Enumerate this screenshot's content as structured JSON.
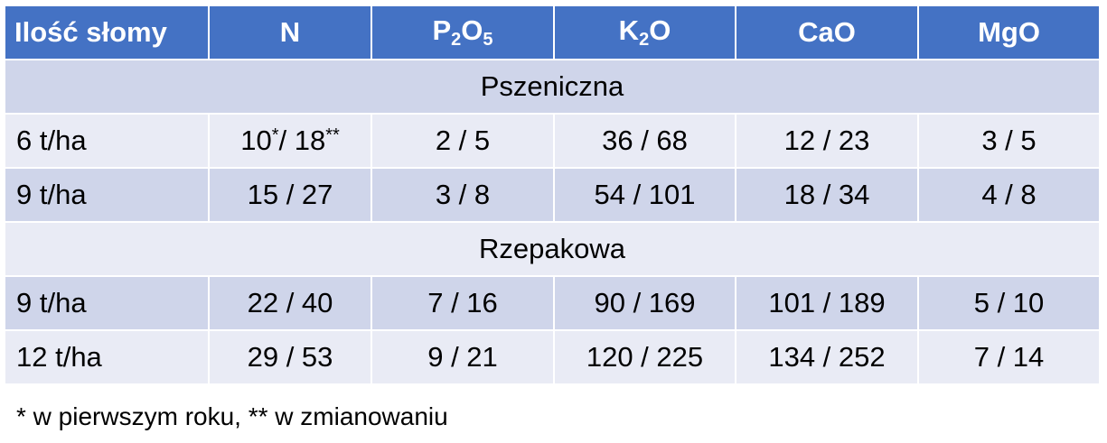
{
  "header": [
    "Ilość słomy",
    "N",
    [
      "P",
      "2",
      "O",
      "5"
    ],
    [
      "K",
      "2",
      "O"
    ],
    "CaO",
    "MgO"
  ],
  "sections": [
    {
      "title": "Pszeniczna",
      "rows": [
        [
          "6 t/ha",
          [
            "10",
            "*",
            "/ 18",
            "**"
          ],
          "2 / 5",
          "36 / 68",
          "12 / 23",
          "3 / 5"
        ],
        [
          "9 t/ha",
          "15 / 27",
          "3 / 8",
          "54 / 101",
          "18 / 34",
          "4 / 8"
        ]
      ]
    },
    {
      "title": "Rzepakowa",
      "rows": [
        [
          "9 t/ha",
          "22 / 40",
          "7 / 16",
          "90 / 169",
          "101 / 189",
          "5 / 10"
        ],
        [
          "12 t/ha",
          "29 / 53",
          "9 / 21",
          "120 / 225",
          "134 / 252",
          "7 / 14"
        ]
      ]
    }
  ],
  "footnote": "* w pierwszym roku, ** w zmianowaniu"
}
